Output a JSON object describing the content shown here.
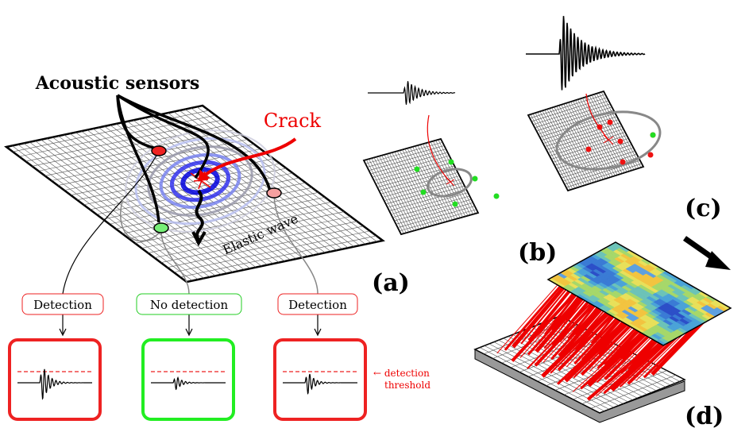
{
  "panel_a": {
    "sensors_label": "Acoustic sensors",
    "crack_label": "Crack",
    "wave_label": "Elastic wave",
    "panel_label": "(a)",
    "sensors": [
      {
        "status": "Detection"
      },
      {
        "status": "No detection"
      },
      {
        "status": "Detection"
      }
    ],
    "threshold_label": [
      "← detection",
      "threshold"
    ]
  },
  "panel_b": {
    "panel_label": "(b)"
  },
  "panel_c": {
    "panel_label": "(c)"
  },
  "panel_d": {
    "panel_label": "(d)"
  }
}
